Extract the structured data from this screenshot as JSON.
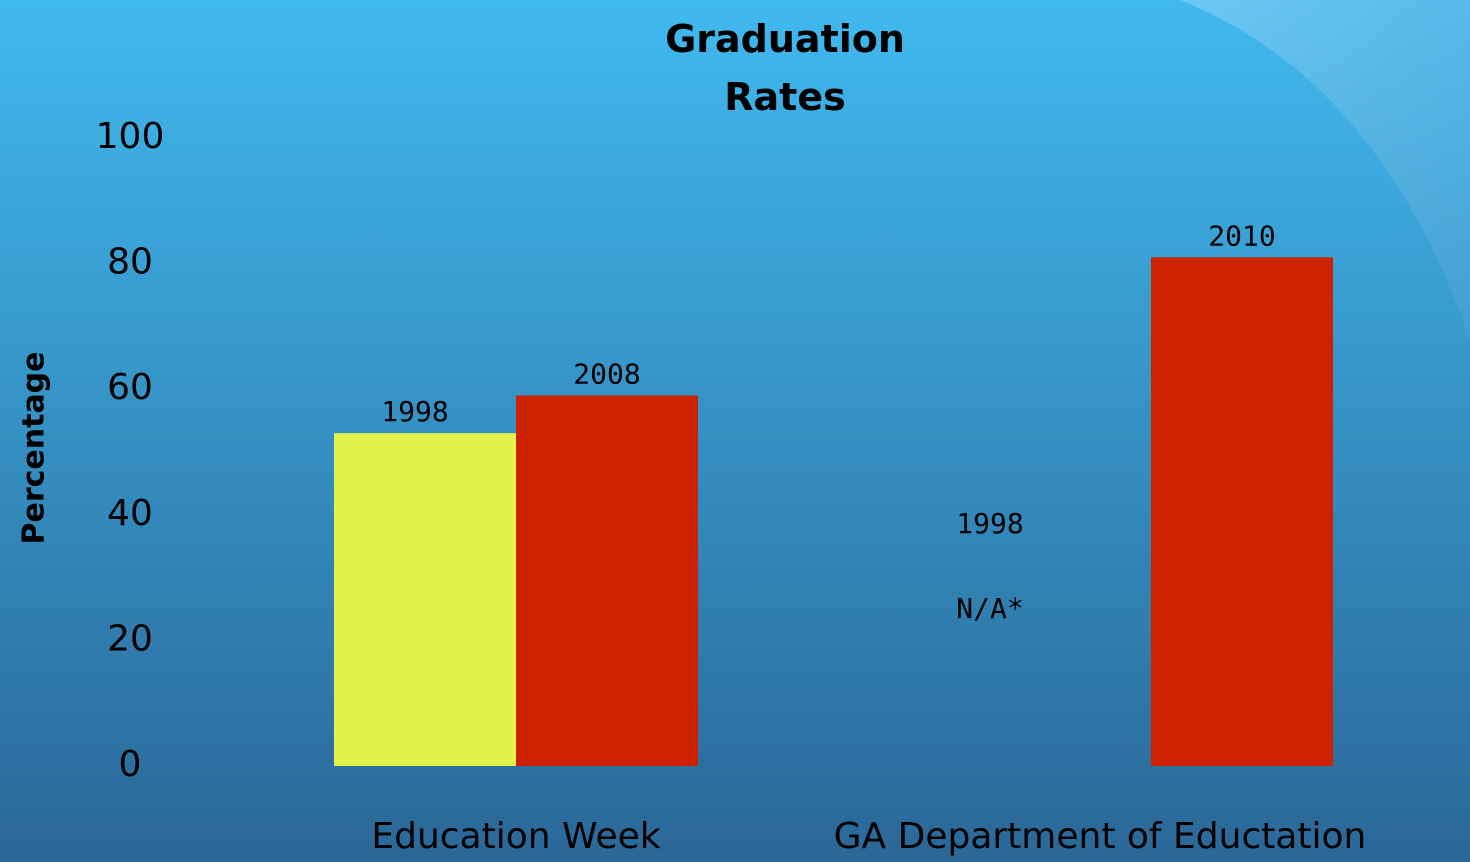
{
  "chart_data": {
    "type": "bar",
    "title": "Graduation Rates",
    "y_label": "Percentage",
    "ylim": [
      0,
      100
    ],
    "yticks": [
      0,
      20,
      40,
      60,
      80,
      100
    ],
    "groups": [
      {
        "category": "Education Week",
        "bars": [
          {
            "label": "1998",
            "value": 53,
            "color": "#e3f24b"
          },
          {
            "label": "2008",
            "value": 59,
            "color": "#cc2200"
          }
        ]
      },
      {
        "category": "GA Department of Eductation",
        "bars": [
          {
            "label": "1998",
            "value": null,
            "value_label": "N/A*",
            "color": "#e3f24b"
          },
          {
            "label": "2010",
            "value": 81,
            "color": "#cc2200"
          }
        ]
      }
    ]
  }
}
